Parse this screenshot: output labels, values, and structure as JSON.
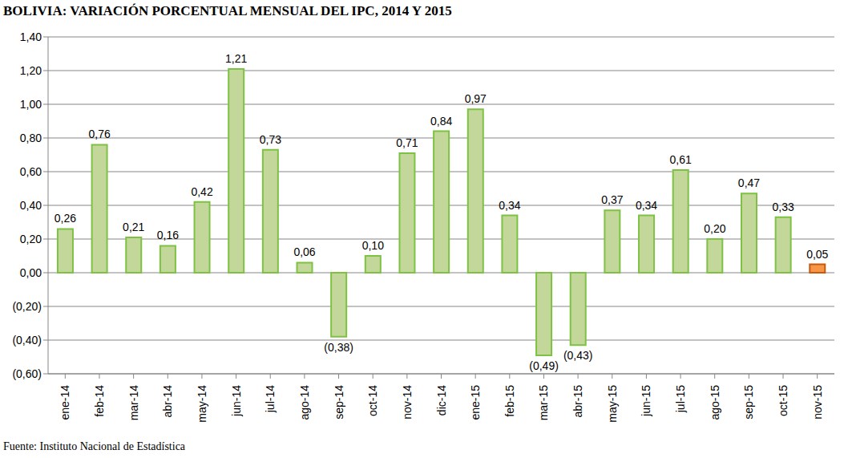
{
  "chart_data": {
    "type": "bar",
    "title": "BOLIVIA: VARIACIÓN PORCENTUAL MENSUAL DEL IPC, 2014 Y 2015",
    "source": "Fuente: Instituto Nacional de Estadística",
    "categories": [
      "ene-14",
      "feb-14",
      "mar-14",
      "abr-14",
      "may-14",
      "jun-14",
      "jul-14",
      "ago-14",
      "sep-14",
      "oct-14",
      "nov-14",
      "dic-14",
      "ene-15",
      "feb-15",
      "mar-15",
      "abr-15",
      "may-15",
      "jun-15",
      "jul-15",
      "ago-15",
      "sep-15",
      "oct-15",
      "nov-15"
    ],
    "values": [
      0.26,
      0.76,
      0.21,
      0.16,
      0.42,
      1.21,
      0.73,
      0.06,
      -0.38,
      0.1,
      0.71,
      0.84,
      0.97,
      0.34,
      -0.49,
      -0.43,
      0.37,
      0.34,
      0.61,
      0.2,
      0.47,
      0.33,
      0.05
    ],
    "value_labels": [
      "0,26",
      "0,76",
      "0,21",
      "0,16",
      "0,42",
      "1,21",
      "0,73",
      "0,06",
      "(0,38)",
      "0,10",
      "0,71",
      "0,84",
      "0,97",
      "0,34",
      "(0,49)",
      "(0,43)",
      "0,37",
      "0,34",
      "0,61",
      "0,20",
      "0,47",
      "0,33",
      "0,05"
    ],
    "colors": [
      "#c4d79b",
      "#c4d79b",
      "#c4d79b",
      "#c4d79b",
      "#c4d79b",
      "#c4d79b",
      "#c4d79b",
      "#c4d79b",
      "#c4d79b",
      "#c4d79b",
      "#c4d79b",
      "#c4d79b",
      "#c4d79b",
      "#c4d79b",
      "#c4d79b",
      "#c4d79b",
      "#c4d79b",
      "#c4d79b",
      "#c4d79b",
      "#c4d79b",
      "#c4d79b",
      "#c4d79b",
      "#f79646"
    ],
    "ylim": [
      -0.6,
      1.4
    ],
    "yticks": [
      {
        "value": -0.6,
        "label": "(0,60)"
      },
      {
        "value": -0.4,
        "label": "(0,40)"
      },
      {
        "value": -0.2,
        "label": "(0,20)"
      },
      {
        "value": 0,
        "label": "0,00"
      },
      {
        "value": 0.2,
        "label": "0,20"
      },
      {
        "value": 0.4,
        "label": "0,40"
      },
      {
        "value": 0.6,
        "label": "0,60"
      },
      {
        "value": 0.8,
        "label": "0,80"
      },
      {
        "value": 1.0,
        "label": "1,00"
      },
      {
        "value": 1.2,
        "label": "1,20"
      },
      {
        "value": 1.4,
        "label": "1,40"
      }
    ],
    "grid": true,
    "data_labels": true
  }
}
